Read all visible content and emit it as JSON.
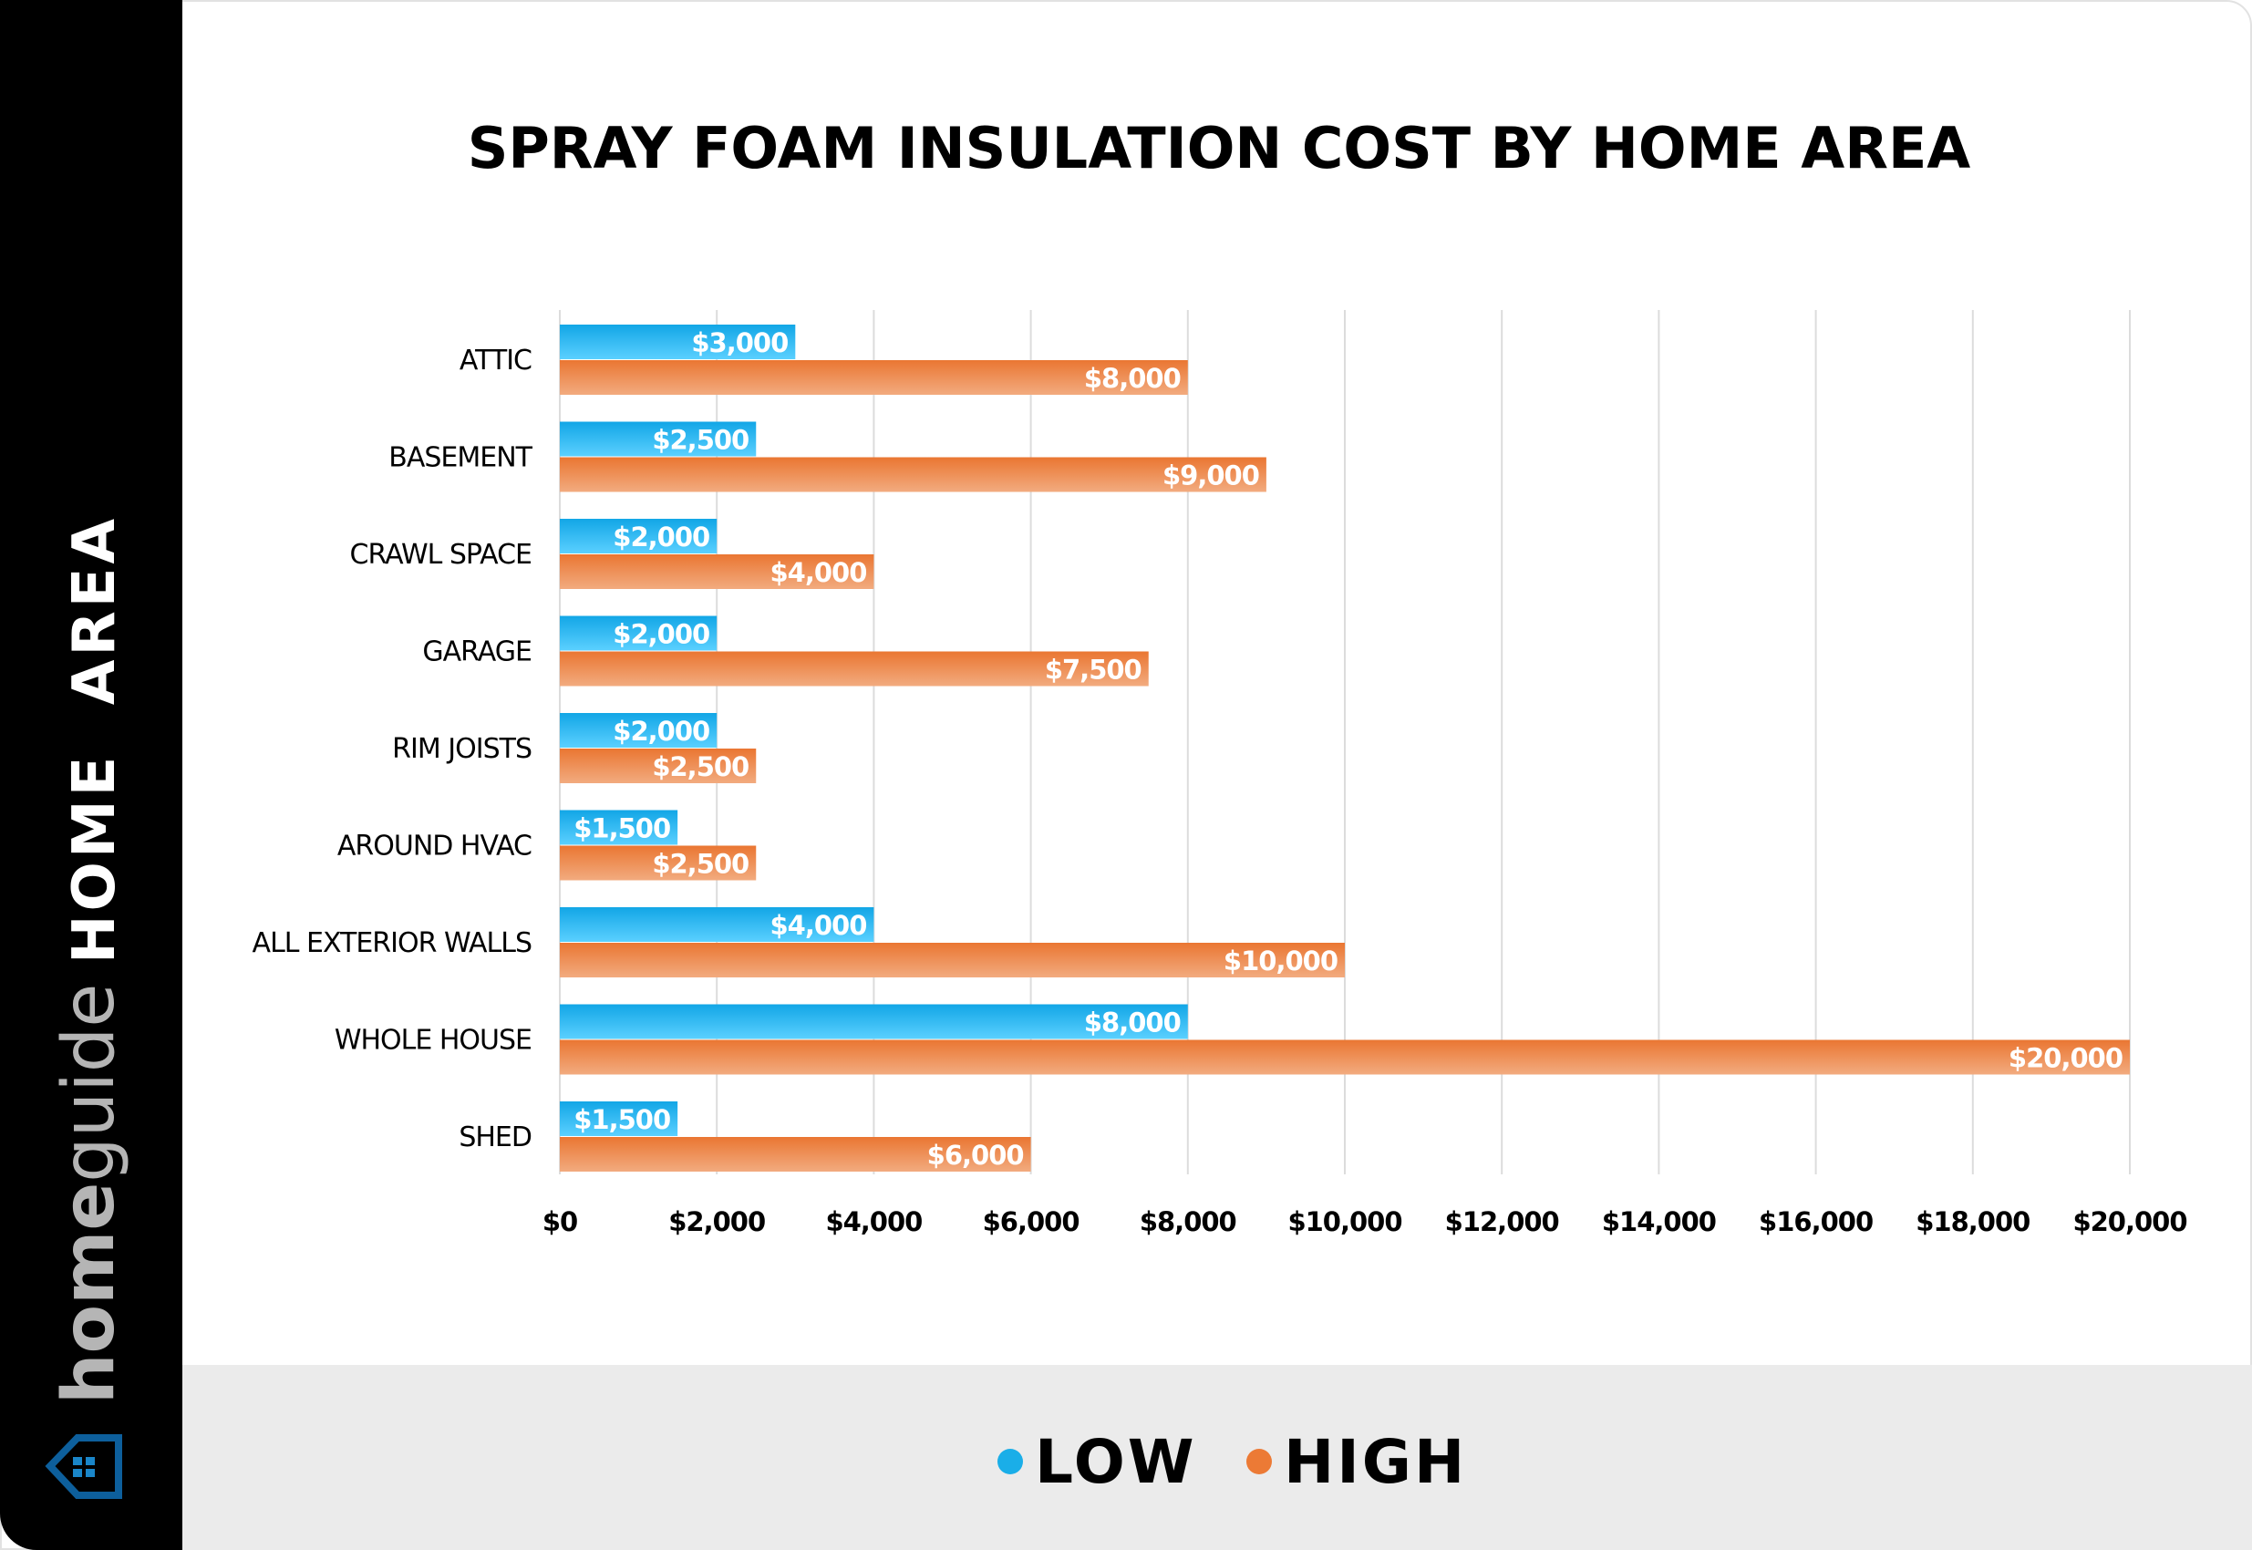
{
  "sidebar": {
    "axis_title": "HOME  AREA",
    "logo_text": "homeguide",
    "logo_bold_part": "home",
    "logo_rest": "guide"
  },
  "chart_data": {
    "type": "bar",
    "orientation": "horizontal",
    "title": "SPRAY FOAM INSULATION COST BY HOME AREA",
    "ylabel": "HOME  AREA",
    "xlabel": "",
    "categories": [
      "ATTIC",
      "BASEMENT",
      "CRAWL SPACE",
      "GARAGE",
      "RIM JOISTS",
      "AROUND HVAC",
      "ALL EXTERIOR WALLS",
      "WHOLE HOUSE",
      "SHED"
    ],
    "series": [
      {
        "name": "LOW",
        "color": "#1aaee8",
        "values": [
          3000,
          2500,
          2000,
          2000,
          2000,
          1500,
          4000,
          8000,
          1500
        ],
        "labels": [
          "$3,000",
          "$2,500",
          "$2,000",
          "$2,000",
          "$2,000",
          "$1,500",
          "$4,000",
          "$8,000",
          "$1,500"
        ]
      },
      {
        "name": "HIGH",
        "color": "#ec7a35",
        "values": [
          8000,
          9000,
          4000,
          7500,
          2500,
          2500,
          10000,
          20000,
          6000
        ],
        "labels": [
          "$8,000",
          "$9,000",
          "$4,000",
          "$7,500",
          "$2,500",
          "$2,500",
          "$10,000",
          "$20,000",
          "$6,000"
        ]
      }
    ],
    "xlim": [
      0,
      20000
    ],
    "xticks": [
      0,
      2000,
      4000,
      6000,
      8000,
      10000,
      12000,
      14000,
      16000,
      18000,
      20000
    ],
    "xtick_labels": [
      "$0",
      "$2,000",
      "$4,000",
      "$6,000",
      "$8,000",
      "$10,000",
      "$12,000",
      "$14,000",
      "$16,000",
      "$18,000",
      "$20,000"
    ],
    "grid": "vertical",
    "legend_position": "bottom"
  }
}
